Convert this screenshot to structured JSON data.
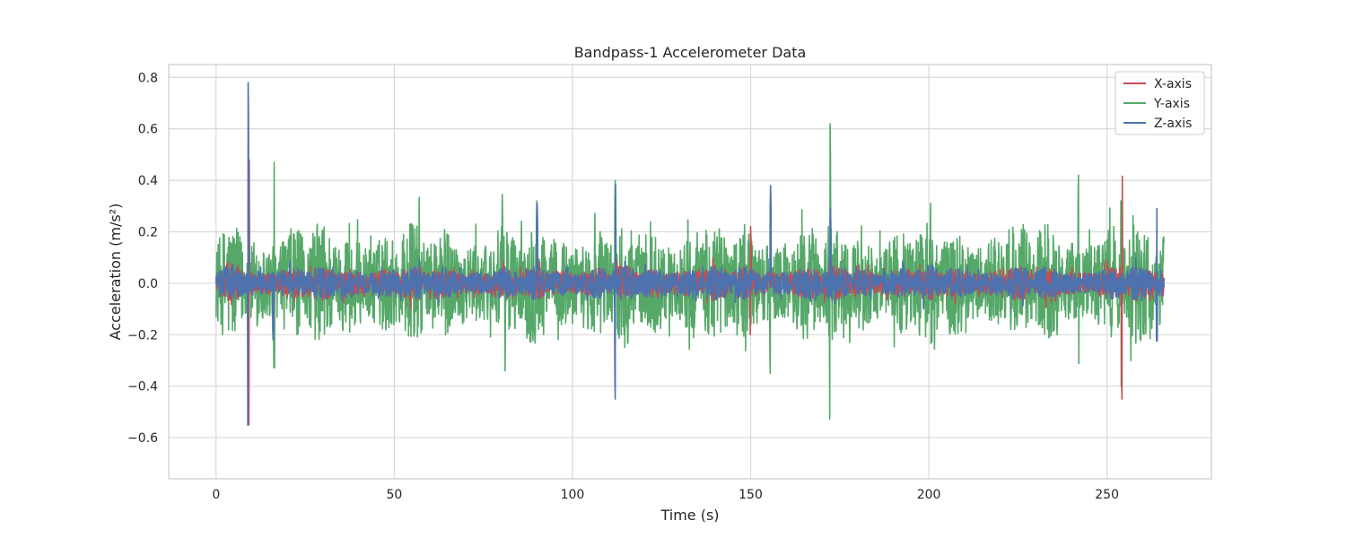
{
  "chart_data": {
    "type": "line",
    "title": "Bandpass-1 Accelerometer Data",
    "xlabel": "Time (s)",
    "ylabel": "Acceleration (m/s²)",
    "xlim": [
      -13.3,
      279.3
    ],
    "ylim": [
      -0.76,
      0.85
    ],
    "xticks": [
      0,
      50,
      100,
      150,
      200,
      250
    ],
    "yticks": [
      -0.6,
      -0.4,
      -0.2,
      0.0,
      0.2,
      0.4,
      0.6,
      0.8
    ],
    "ytick_labels": [
      "−0.6",
      "−0.4",
      "−0.2",
      "0.0",
      "0.2",
      "0.4",
      "0.6",
      "0.8"
    ],
    "grid": true,
    "legend_position": "top-right",
    "sample_interval": 0.1,
    "time_range": [
      0,
      266
    ],
    "series": [
      {
        "name": "Y-axis",
        "color": "#55a868",
        "typical_amplitude": 0.25,
        "spikes": [
          {
            "t": 9.2,
            "min": -0.4,
            "max": 0.36
          },
          {
            "t": 16.3,
            "min": -0.41,
            "max": 0.47
          },
          {
            "t": 90.0,
            "min": -0.3,
            "max": 0.32
          },
          {
            "t": 112.0,
            "min": -0.4,
            "max": 0.4
          },
          {
            "t": 155.5,
            "min": -0.35,
            "max": 0.37
          },
          {
            "t": 172.3,
            "min": -0.66,
            "max": 0.62
          },
          {
            "t": 242.0,
            "min": -0.39,
            "max": 0.42
          },
          {
            "t": 254.0,
            "min": -0.4,
            "max": 0.4
          }
        ]
      },
      {
        "name": "X-axis",
        "color": "#c44e52",
        "typical_amplitude": 0.07,
        "spikes": [
          {
            "t": 9.2,
            "min": -0.55,
            "max": 0.6
          },
          {
            "t": 150.0,
            "min": -0.25,
            "max": 0.22
          },
          {
            "t": 254.2,
            "min": -0.45,
            "max": 0.52
          }
        ]
      },
      {
        "name": "Z-axis",
        "color": "#4c72b0",
        "typical_amplitude": 0.07,
        "spikes": [
          {
            "t": 9.0,
            "min": -0.69,
            "max": 0.78
          },
          {
            "t": 16.0,
            "min": -0.22,
            "max": 0.26
          },
          {
            "t": 90.1,
            "min": -0.25,
            "max": 0.31
          },
          {
            "t": 112.0,
            "min": -0.45,
            "max": 0.48
          },
          {
            "t": 155.6,
            "min": -0.39,
            "max": 0.38
          },
          {
            "t": 172.4,
            "min": -0.28,
            "max": 0.29
          },
          {
            "t": 264.0,
            "min": -0.28,
            "max": 0.29
          }
        ]
      }
    ],
    "legend_order": [
      "X-axis",
      "Y-axis",
      "Z-axis"
    ]
  }
}
